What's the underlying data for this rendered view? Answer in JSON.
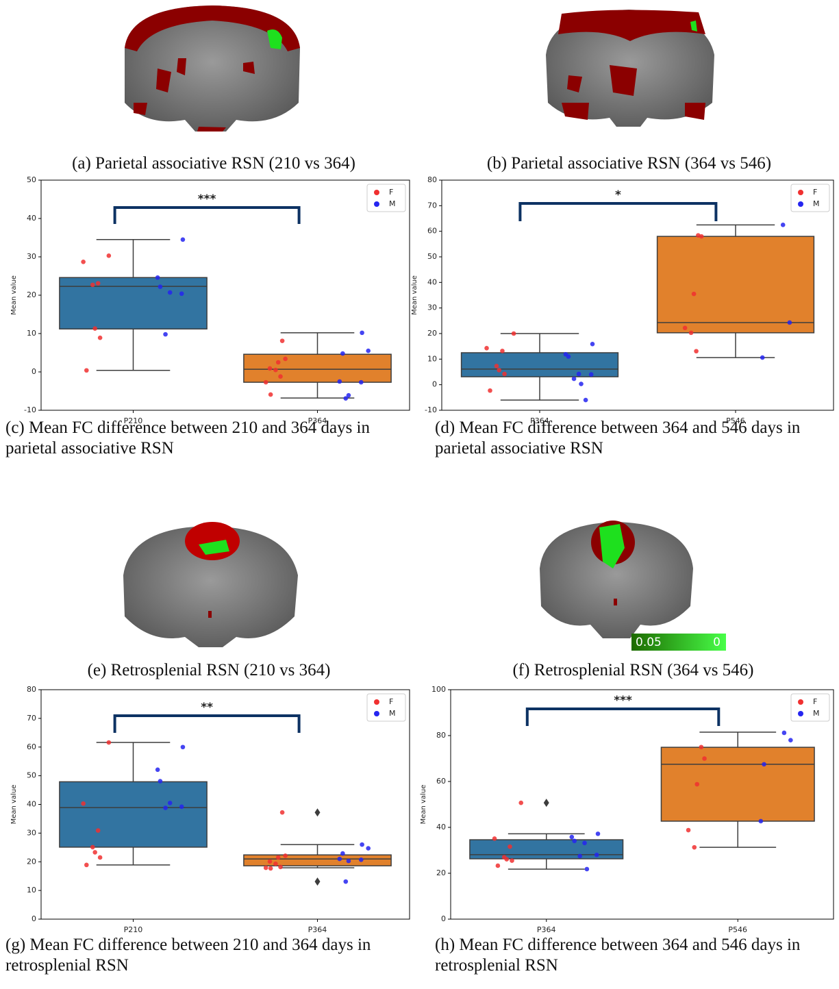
{
  "images": [
    {
      "caption": "(a) Parietal associative RSN (210 vs 364)"
    },
    {
      "caption": "(b) Parietal associative RSN (364 vs 546)"
    },
    {
      "caption": "(e) Retrosplenial RSN (210 vs 364)"
    },
    {
      "caption": "(f) Retrosplenial RSN (364 vs 546)",
      "colorbar": [
        0.05,
        0
      ]
    }
  ],
  "chart_data": [
    {
      "type": "box",
      "caption": "(c) Mean FC difference between 210 and 364 days in parietal associative RSN",
      "ylabel": "Mean value",
      "categories": [
        "P210",
        "P364"
      ],
      "box_colors": [
        "#3274a1",
        "#e1812c"
      ],
      "boxes": [
        {
          "whislo": 0.4,
          "q1": 11.2,
          "med": 22.3,
          "q3": 24.6,
          "whishi": 34.5,
          "fliers": []
        },
        {
          "whislo": -6.8,
          "q1": -2.7,
          "med": 0.7,
          "q3": 4.6,
          "whishi": 10.2,
          "fliers": []
        }
      ],
      "series": [
        {
          "name": "F",
          "color": "#f03030",
          "values": [
            [
              30.3,
              28.7,
              23.1,
              22.7,
              11.3,
              8.9,
              0.4
            ],
            [
              8.1,
              3.4,
              2.5,
              0.9,
              0.5,
              -1.2,
              -2.7,
              -5.9
            ]
          ]
        },
        {
          "name": "M",
          "color": "#2525f0",
          "values": [
            [
              34.5,
              24.6,
              22.2,
              20.7,
              20.4,
              9.8
            ],
            [
              10.2,
              5.5,
              4.8,
              -2.5,
              -2.7,
              -6.1,
              -6.9
            ]
          ]
        }
      ],
      "annotation": "***",
      "ylim": [
        -10,
        50
      ],
      "yticks": [
        -10,
        0,
        10,
        20,
        30,
        40,
        50
      ],
      "legend": "upper right"
    },
    {
      "type": "box",
      "caption": "(d) Mean FC difference between 364 and 546 days in parietal associative RSN",
      "ylabel": "Mean value",
      "categories": [
        "P364",
        "P546"
      ],
      "box_colors": [
        "#3274a1",
        "#e1812c"
      ],
      "boxes": [
        {
          "whislo": -6.0,
          "q1": 3.1,
          "med": 6.1,
          "q3": 12.5,
          "whishi": 20.0,
          "fliers": []
        },
        {
          "whislo": 10.6,
          "q1": 20.3,
          "med": 24.3,
          "q3": 58.0,
          "whishi": 62.5,
          "fliers": []
        }
      ],
      "series": [
        {
          "name": "F",
          "color": "#f03030",
          "values": [
            [
              20.0,
              14.3,
              13.2,
              7.3,
              5.7,
              4.2,
              -2.3
            ],
            [
              58.4,
              58.0,
              35.5,
              22.2,
              20.3,
              13.1
            ]
          ]
        },
        {
          "name": "M",
          "color": "#2525f0",
          "values": [
            [
              15.9,
              11.9,
              11.0,
              4.2,
              4.0,
              2.3,
              0.3,
              -6.0
            ],
            [
              62.5,
              24.3,
              10.6
            ]
          ]
        }
      ],
      "annotation": "*",
      "ylim": [
        -10,
        80
      ],
      "yticks": [
        -10,
        0,
        10,
        20,
        30,
        40,
        50,
        60,
        70,
        80
      ],
      "legend": "upper right"
    },
    {
      "type": "box",
      "caption": "(g) Mean FC difference between 210 and 364 days in retrosplenial RSN",
      "ylabel": "Mean value",
      "categories": [
        "P210",
        "P364"
      ],
      "box_colors": [
        "#3274a1",
        "#e1812c"
      ],
      "boxes": [
        {
          "whislo": 18.9,
          "q1": 25.1,
          "med": 38.9,
          "q3": 47.9,
          "whishi": 61.6,
          "fliers": []
        },
        {
          "whislo": 17.9,
          "q1": 18.6,
          "med": 21.0,
          "q3": 22.4,
          "whishi": 26.0,
          "fliers": [
            37.2,
            13.1
          ]
        }
      ],
      "series": [
        {
          "name": "F",
          "color": "#f03030",
          "values": [
            [
              61.6,
              40.3,
              30.9,
              25.1,
              23.3,
              21.5,
              18.9
            ],
            [
              37.2,
              22.1,
              21.5,
              20.1,
              19.3,
              18.2,
              17.9,
              17.7
            ]
          ]
        },
        {
          "name": "M",
          "color": "#2525f0",
          "values": [
            [
              60.0,
              52.1,
              48.1,
              40.5,
              39.2,
              38.8
            ],
            [
              26.0,
              24.7,
              22.9,
              21.0,
              20.7,
              20.3,
              13.1
            ]
          ]
        }
      ],
      "annotation": "**",
      "ylim": [
        0,
        80
      ],
      "yticks": [
        0,
        10,
        20,
        30,
        40,
        50,
        60,
        70,
        80
      ],
      "legend": "upper right"
    },
    {
      "type": "box",
      "caption": "(h) Mean FC difference between 364 and 546 days in retrosplenial RSN",
      "ylabel": "Mean value",
      "categories": [
        "P364",
        "P546"
      ],
      "box_colors": [
        "#3274a1",
        "#e1812c"
      ],
      "boxes": [
        {
          "whislo": 21.8,
          "q1": 26.3,
          "med": 28.1,
          "q3": 34.6,
          "whishi": 37.2,
          "fliers": [
            50.7
          ]
        },
        {
          "whislo": 31.3,
          "q1": 42.7,
          "med": 67.5,
          "q3": 74.9,
          "whishi": 81.5,
          "fliers": []
        }
      ],
      "series": [
        {
          "name": "F",
          "color": "#f03030",
          "values": [
            [
              50.7,
              35.1,
              31.6,
              27.0,
              26.1,
              25.5,
              23.3
            ],
            [
              75.0,
              70.0,
              58.8,
              38.8,
              31.3
            ]
          ]
        },
        {
          "name": "M",
          "color": "#2525f0",
          "values": [
            [
              37.2,
              35.8,
              34.1,
              33.2,
              28.0,
              27.5,
              21.8
            ],
            [
              81.2,
              78.0,
              67.5,
              42.7
            ]
          ]
        }
      ],
      "annotation": "***",
      "ylim": [
        0,
        100
      ],
      "yticks": [
        0,
        20,
        40,
        60,
        80,
        100
      ],
      "legend": "upper right"
    }
  ]
}
